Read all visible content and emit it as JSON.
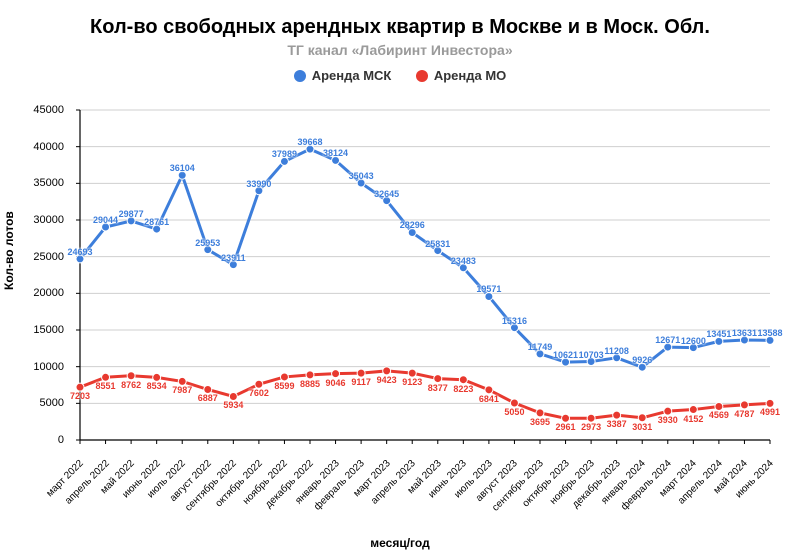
{
  "title": "Кол-во свободных арендных квартир в Москве и в Моск. Обл.",
  "subtitle": "ТГ канал «Лабиринт Инвестора»",
  "legend": {
    "series1": "Аренда МСК",
    "series2": "Аренда МО"
  },
  "chart": {
    "type": "line",
    "x_axis_title": "месяц/год",
    "y_axis_title": "Кол-во лотов",
    "background_color": "#ffffff",
    "grid_color": "#cfcfcf",
    "axis_color": "#000000",
    "title_fontsize": 20,
    "subtitle_fontsize": 14,
    "subtitle_color": "#9a9a9a",
    "label_fontsize": 12,
    "tick_fontsize": 11,
    "data_label_fontsize": 9,
    "marker_radius": 4,
    "line_width": 3,
    "ylim": [
      0,
      45000
    ],
    "ytick_step": 5000,
    "categories": [
      "март 2022",
      "апрель 2022",
      "май 2022",
      "июнь 2022",
      "июль 2022",
      "август 2022",
      "сентябрь 2022",
      "октябрь 2022",
      "ноябрь 2022",
      "декабрь 2022",
      "январь 2023",
      "февраль 2023",
      "март 2023",
      "апрель 2023",
      "май 2023",
      "июнь 2023",
      "июль 2023",
      "август 2023",
      "сентябрь 2023",
      "октябрь 2023",
      "ноябрь 2023",
      "декабрь 2023",
      "январь 2024",
      "февраль 2024",
      "март 2024",
      "апрель 2024",
      "май 2024",
      "июнь 2024"
    ],
    "series": [
      {
        "name": "Аренда МСК",
        "color": "#3d7edb",
        "values": [
          24693,
          29044,
          29877,
          28761,
          36104,
          25953,
          23911,
          33990,
          37989,
          39668,
          38124,
          35043,
          32645,
          28296,
          25831,
          23483,
          19571,
          15316,
          11749,
          10621,
          10703,
          11208,
          9926,
          12671,
          12600,
          13451,
          13631,
          13588
        ]
      },
      {
        "name": "Аренда МО",
        "color": "#e8392f",
        "values": [
          7203,
          8551,
          8762,
          8534,
          7987,
          6887,
          5934,
          7602,
          8599,
          8885,
          9046,
          9117,
          9423,
          9123,
          8377,
          8223,
          6841,
          5050,
          3695,
          2961,
          2973,
          3387,
          3031,
          3930,
          4152,
          4569,
          4787,
          4991
        ]
      }
    ]
  }
}
